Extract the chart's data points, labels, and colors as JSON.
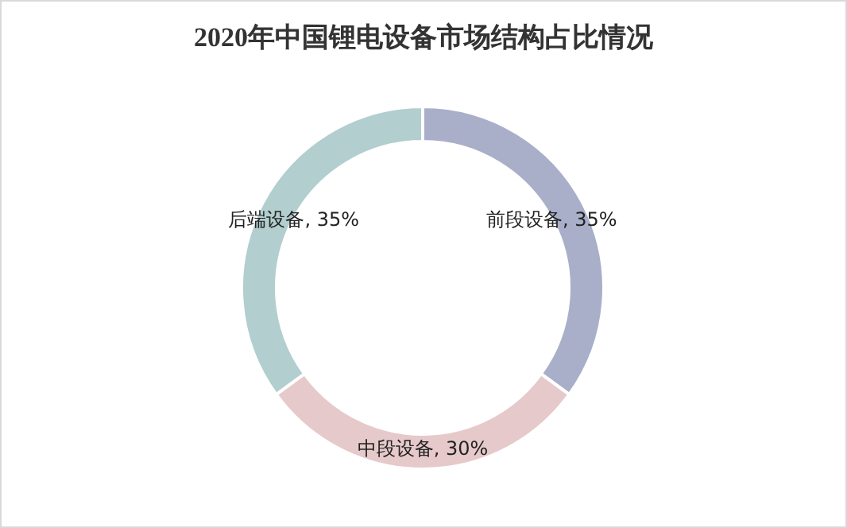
{
  "chart_data": {
    "type": "donut",
    "title": "2020年中国锂电设备市场结构占比情况",
    "categories": [
      "前段设备",
      "中段设备",
      "后端设备"
    ],
    "values": [
      35,
      30,
      35
    ],
    "value_labels": [
      ", 35%",
      ", 30%",
      ", 35%"
    ],
    "colors": [
      "#a9afc9",
      "#e6c9ca",
      "#b2cecf"
    ]
  }
}
